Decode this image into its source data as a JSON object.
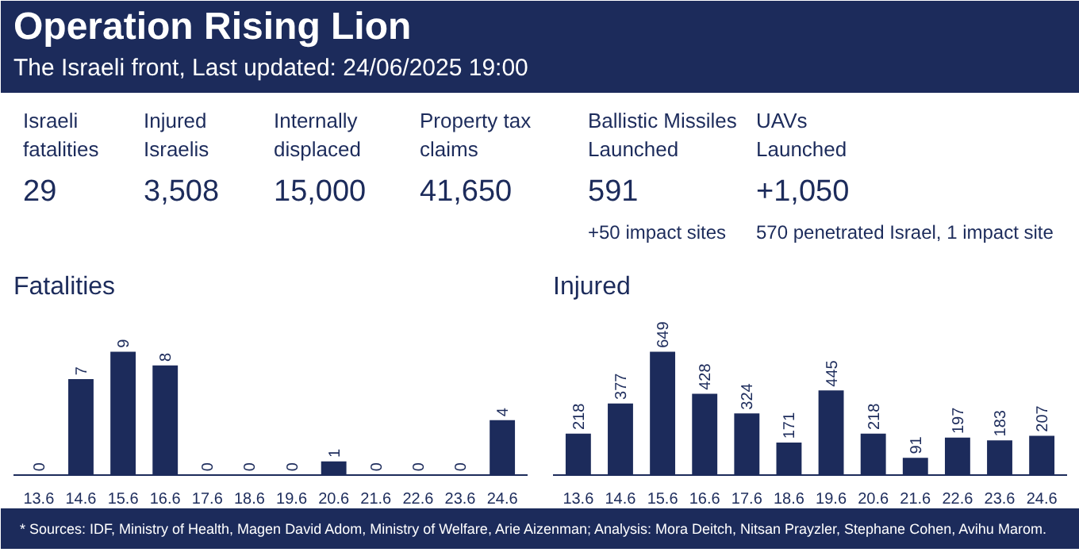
{
  "chart_data": [
    {
      "type": "other",
      "title": "Operation Rising Lion",
      "subtitle": "The Israeli front, Last updated: 24/06/2025 19:00",
      "categories": [
        "Israeli\nfatalities",
        "Injured\nIsraelis",
        "Internally\ndisplaced",
        "Property tax\nclaims",
        "Ballistic Missiles\nLaunched",
        "UAVs\nLaunched"
      ],
      "value_labels": [
        "29",
        "3,508",
        "15,000",
        "41,650",
        "591",
        "+1,050"
      ],
      "annotations": [
        {
          "text": "+50 impact sites",
          "x": "Ballistic Missiles\nLaunched"
        },
        {
          "text": "570 penetrated Israel, 1 impact site",
          "x": "UAVs\nLaunched"
        }
      ]
    },
    {
      "type": "bar",
      "title": "Fatalities",
      "categories": [
        "13.6",
        "14.6",
        "15.6",
        "16.6",
        "17.6",
        "18.6",
        "19.6",
        "20.6",
        "21.6",
        "22.6",
        "23.6",
        "24.6"
      ],
      "values": [
        0,
        7,
        9,
        8,
        0,
        0,
        0,
        1,
        0,
        0,
        0,
        4
      ],
      "color": "#1c2b5b",
      "data_labels": true,
      "tick_labels": "x",
      "annotations": [
        "* Sources: IDF, Ministry of Health, Magen David Adom, Ministry of Welfare, Arie Aizenman; Analysis: Mora Deitch, Nitsan Prayzler, Stephane Cohen, Avihu Marom."
      ]
    },
    {
      "type": "bar",
      "title": "Injured",
      "categories": [
        "13.6",
        "14.6",
        "15.6",
        "16.6",
        "17.6",
        "18.6",
        "19.6",
        "20.6",
        "21.6",
        "22.6",
        "23.6",
        "24.6"
      ],
      "values": [
        218,
        377,
        649,
        428,
        324,
        171,
        445,
        218,
        91,
        197,
        183,
        207
      ],
      "color": "#1c2b5b",
      "data_labels": true,
      "tick_labels": "x"
    }
  ]
}
